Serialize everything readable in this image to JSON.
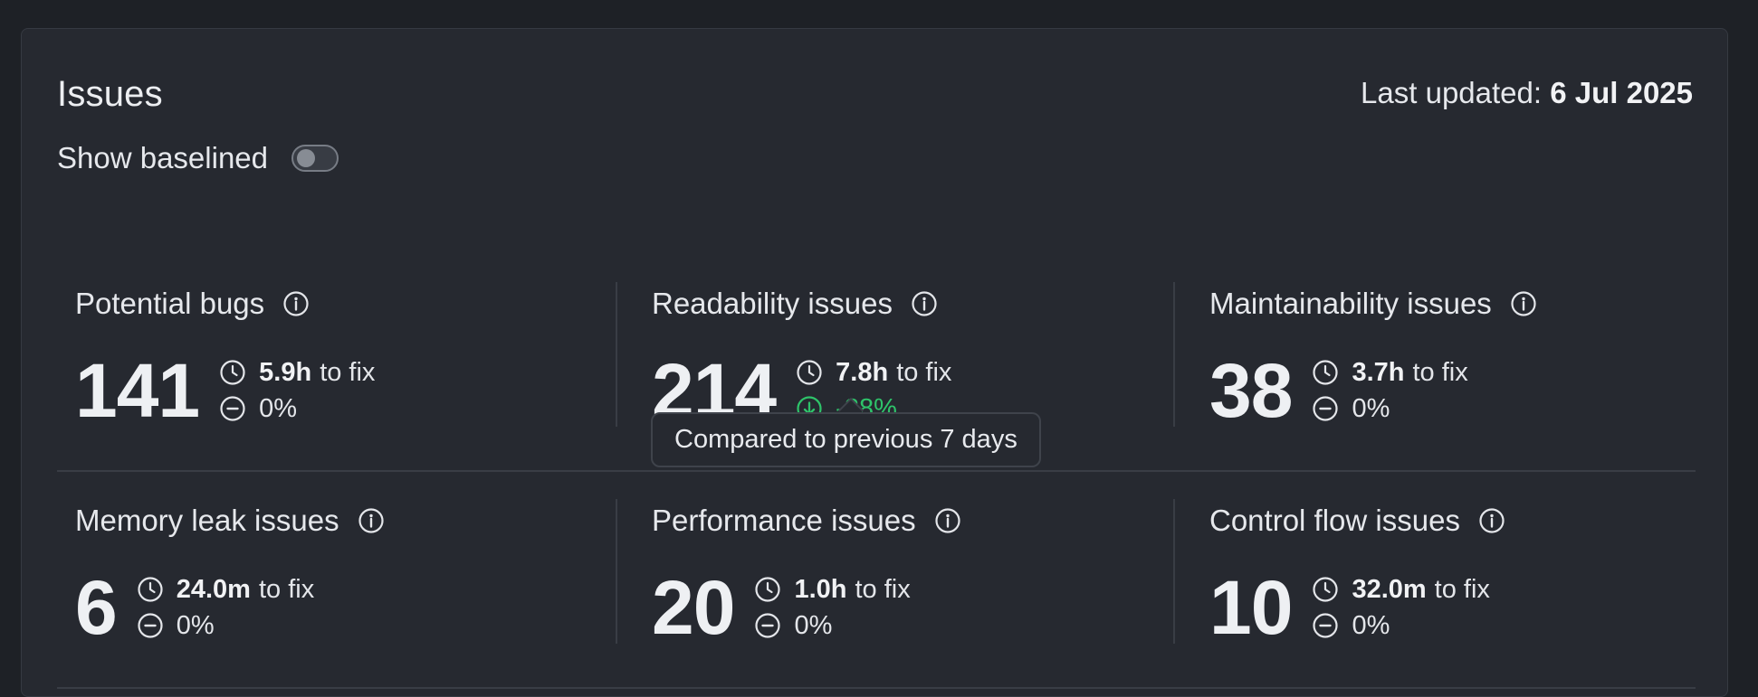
{
  "header": {
    "title": "Issues",
    "last_updated_label": "Last updated:",
    "last_updated_value": "6 Jul 2025"
  },
  "baseline": {
    "label": "Show baselined",
    "enabled": false
  },
  "cards": [
    {
      "title": "Potential bugs",
      "count": "141",
      "fix_time": "5.9h",
      "fix_suffix": "to fix",
      "change": "0%",
      "trend": "neutral"
    },
    {
      "title": "Readability issues",
      "count": "214",
      "fix_time": "7.8h",
      "fix_suffix": "to fix",
      "change": "-28%",
      "trend": "down"
    },
    {
      "title": "Maintainability issues",
      "count": "38",
      "fix_time": "3.7h",
      "fix_suffix": "to fix",
      "change": "0%",
      "trend": "neutral"
    },
    {
      "title": "Memory leak issues",
      "count": "6",
      "fix_time": "24.0m",
      "fix_suffix": "to fix",
      "change": "0%",
      "trend": "neutral"
    },
    {
      "title": "Performance issues",
      "count": "20",
      "fix_time": "1.0h",
      "fix_suffix": "to fix",
      "change": "0%",
      "trend": "neutral"
    },
    {
      "title": "Control flow issues",
      "count": "10",
      "fix_time": "32.0m",
      "fix_suffix": "to fix",
      "change": "0%",
      "trend": "neutral"
    }
  ],
  "tooltip": {
    "text": "Compared to previous 7 days"
  },
  "colors": {
    "positive_trend": "#2ec46a",
    "background": "#1e2126",
    "panel": "#262930"
  },
  "icons": {
    "info": "info-icon",
    "clock": "clock-icon",
    "neutral": "minus-circle-icon",
    "down": "arrow-down-circle-icon"
  }
}
